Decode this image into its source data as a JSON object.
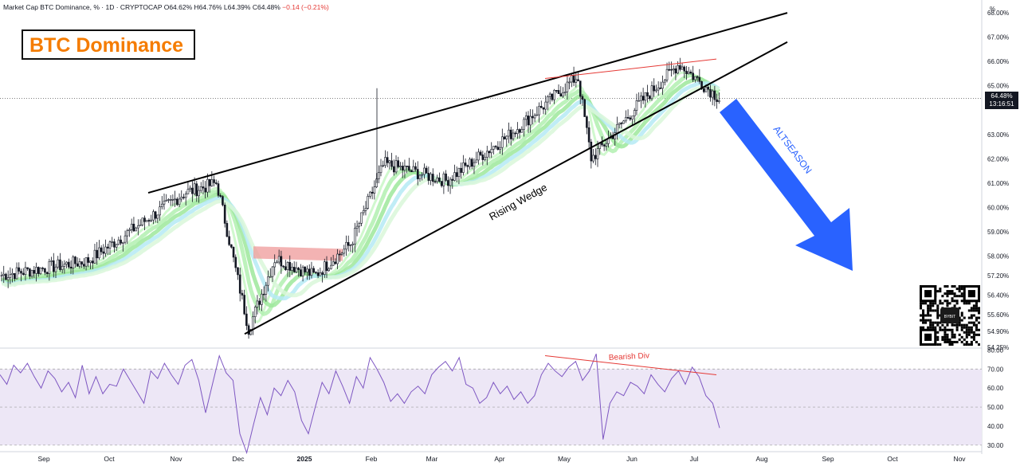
{
  "header": {
    "symbol": "Market Cap BTC Dominance, % · 1D · CRYPTOCAP",
    "open": "O64.62%",
    "high": "H64.76%",
    "low": "L64.39%",
    "close": "C64.48%",
    "change": "−0.14 (−0.21%)"
  },
  "title": "BTC Dominance",
  "price_tag": {
    "value": "64.48%",
    "countdown": "13:16:51"
  },
  "axis_unit": "%",
  "annotations": {
    "wedge": "Rising Wedge",
    "arrow": "ALTSEASON",
    "divergence": "Bearish Div"
  },
  "qr_label": "BYBIT",
  "colors": {
    "candle": "#131722",
    "rsi_line": "#7e57c2",
    "rsi_band": "#ede7f6",
    "arrow": "#2962ff",
    "title": "#f57c00",
    "div_line": "#e53935"
  },
  "chart_data": [
    {
      "type": "candlestick",
      "title": "BTC Dominance",
      "ylabel": "%",
      "ylim": [
        54.25,
        68.2
      ],
      "price_ticks": [
        "68.00%",
        "67.00%",
        "66.00%",
        "65.00%",
        "63.00%",
        "62.00%",
        "61.00%",
        "60.00%",
        "59.00%",
        "58.00%",
        "57.20%",
        "56.40%",
        "55.60%",
        "54.90%",
        "54.25%"
      ],
      "time_ticks": [
        "Sep",
        "Oct",
        "Nov",
        "Dec",
        "2025",
        "Feb",
        "Mar",
        "Apr",
        "May",
        "Jun",
        "Jul",
        "Aug",
        "Sep",
        "Oct",
        "Nov"
      ],
      "x": [
        "Sep",
        "Oct",
        "Nov",
        "Nov",
        "Dec",
        "Dec",
        "2025",
        "Feb",
        "Feb",
        "Mar",
        "Apr",
        "May",
        "May",
        "Jun",
        "Jul",
        "Jul"
      ],
      "close_path": [
        57.2,
        57.8,
        60.6,
        61.0,
        55.0,
        57.9,
        57.2,
        58.5,
        61.8,
        61.1,
        63.0,
        65.4,
        62.0,
        64.2,
        65.9,
        64.48
      ],
      "trendlines": {
        "wedge_upper": [
          60.6,
          68.0
        ],
        "wedge_lower": [
          54.8,
          66.8
        ]
      }
    },
    {
      "type": "line",
      "title": "",
      "ylim": [
        27,
        81
      ],
      "rsi_ticks": [
        "80.00",
        "70.00",
        "60.00",
        "50.00",
        "40.00",
        "30.00"
      ],
      "band": [
        30,
        70
      ],
      "values": [
        67,
        62,
        72,
        68,
        73,
        66,
        60,
        69,
        65,
        58,
        63,
        55,
        72,
        57,
        66,
        57,
        62,
        61,
        70,
        64,
        58,
        52,
        69,
        65,
        73,
        67,
        62,
        72,
        75,
        64,
        47,
        62,
        77,
        68,
        64,
        36,
        26,
        41,
        55,
        46,
        60,
        56,
        64,
        58,
        43,
        36,
        50,
        63,
        57,
        69,
        61,
        52,
        66,
        60,
        76,
        70,
        63,
        53,
        57,
        52,
        58,
        61,
        57,
        67,
        71,
        74,
        69,
        76,
        62,
        60,
        52,
        55,
        63,
        57,
        61,
        54,
        58,
        52,
        56,
        67,
        73,
        69,
        66,
        71,
        74,
        64,
        69,
        78,
        33,
        52,
        58,
        56,
        63,
        61,
        57,
        67,
        62,
        58,
        65,
        69,
        62,
        71,
        66,
        56,
        52,
        39
      ]
    }
  ]
}
